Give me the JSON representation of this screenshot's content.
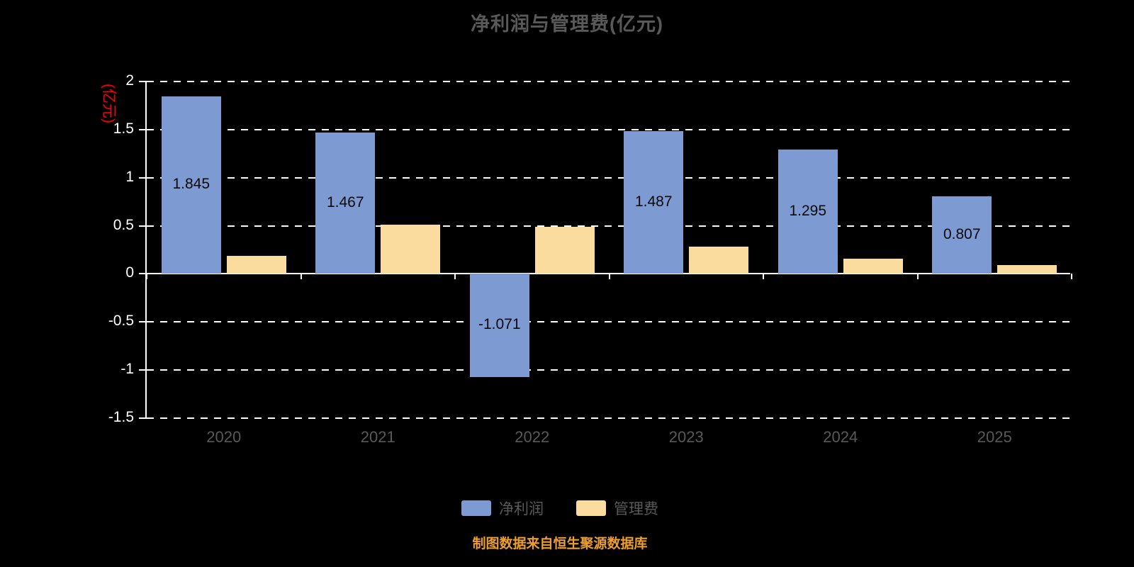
{
  "title": "净利润与管理费(亿元)",
  "y_axis_label": "(亿元)",
  "source_note": "制图数据来自恒生聚源数据库",
  "colors": {
    "background": "#000000",
    "net_profit_blue": "#7e9ad2",
    "management_fee_tan": "#fbdc9f",
    "grid_white": "#ffffff",
    "axis_title_red": "#ff0000",
    "text_gray": "#595959",
    "source_orange": "#ed9e2f",
    "value_label_black": "#0a0a0a"
  },
  "legend": [
    {
      "label": "净利润",
      "color": "#7e9ad2"
    },
    {
      "label": "管理费",
      "color": "#fbdc9f"
    }
  ],
  "chart_data": {
    "type": "bar",
    "title": "净利润与管理费(亿元)",
    "ylabel": "(亿元)",
    "xlabel": "",
    "categories": [
      "2020",
      "2021",
      "2022",
      "2023",
      "2024",
      "2025"
    ],
    "series": [
      {
        "name": "净利润",
        "color": "#7e9ad2",
        "values": [
          1.845,
          1.467,
          -1.071,
          1.487,
          1.295,
          0.807
        ],
        "value_labels": [
          "1.845",
          "1.467",
          "-1.071",
          "1.487",
          "1.295",
          "0.807"
        ]
      },
      {
        "name": "管理费",
        "color": "#fbdc9f",
        "values": [
          0.19,
          0.51,
          0.49,
          0.28,
          0.16,
          0.09
        ]
      }
    ],
    "ylim": [
      -1.5,
      2
    ],
    "ytick_step": 0.5,
    "yticks": [
      2,
      1.5,
      1,
      0.5,
      0,
      -0.5,
      -1,
      -1.5
    ],
    "ytick_labels": [
      "2",
      "1.5",
      "1",
      "0.5",
      "0",
      "-0.5",
      "-1",
      "-1.5"
    ],
    "grid": "horizontal dashed white",
    "legend_position": "bottom"
  }
}
